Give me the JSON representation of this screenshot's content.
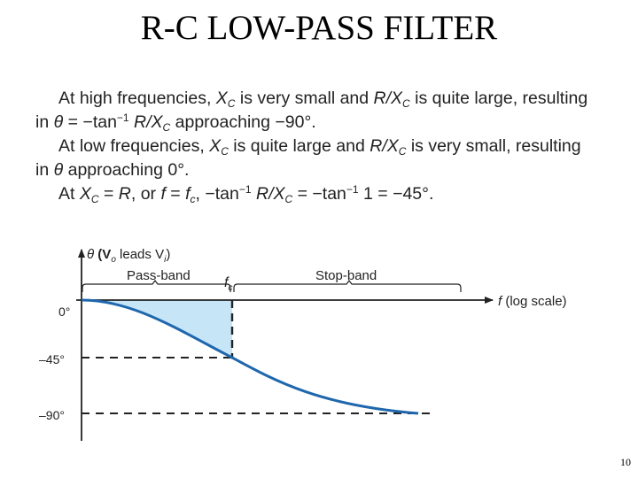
{
  "title": "R-C LOW-PASS FILTER",
  "text": {
    "l1_a": "At high frequencies, ",
    "l1_b": "X",
    "l1_c": "C",
    "l1_d": " is very small and ",
    "l1_e": "R/X",
    "l1_f": "C",
    "l1_g": " is quite large, resulting",
    "l2_a": "in ",
    "l2_b": "θ",
    "l2_c": " = −tan",
    "l2_d": "−1",
    "l2_e": " R/X",
    "l2_f": "C",
    "l2_g": " approaching −90°.",
    "l3_a": "At low frequencies, ",
    "l3_b": "X",
    "l3_c": "C",
    "l3_d": " is quite large and ",
    "l3_e": "R/X",
    "l3_f": "C",
    "l3_g": " is very small, resulting",
    "l4_a": "in ",
    "l4_b": "θ",
    "l4_c": " approaching 0°.",
    "l5_a": "At ",
    "l5_b": "X",
    "l5_c": "C",
    "l5_d": " = ",
    "l5_e": "R",
    "l5_f": ", or ",
    "l5_g": "f",
    "l5_h": " = ",
    "l5_i": "f",
    "l5_j": "c",
    "l5_k": ", −tan",
    "l5_l": "−1",
    "l5_m": " R/X",
    "l5_n": "C",
    "l5_o": " = −tan",
    "l5_p": "−1",
    "l5_q": " 1 = −45°."
  },
  "diagram": {
    "y_axis_label": "θ (V",
    "y_axis_label_sub1": "o",
    "y_axis_label_mid": " leads V",
    "y_axis_label_sub2": "i",
    "y_axis_label_end": ")",
    "x_axis_label": "f (log scale)",
    "passband_label": "Pass-band",
    "stopband_label": "Stop-band",
    "cutoff_label": "f",
    "cutoff_sub": "c",
    "tick_0": "0°",
    "tick_45": "–45°",
    "tick_90": "–90°",
    "curve_color": "#1f67ad",
    "fill_color": "#c6e6f8"
  },
  "page_number": "10"
}
